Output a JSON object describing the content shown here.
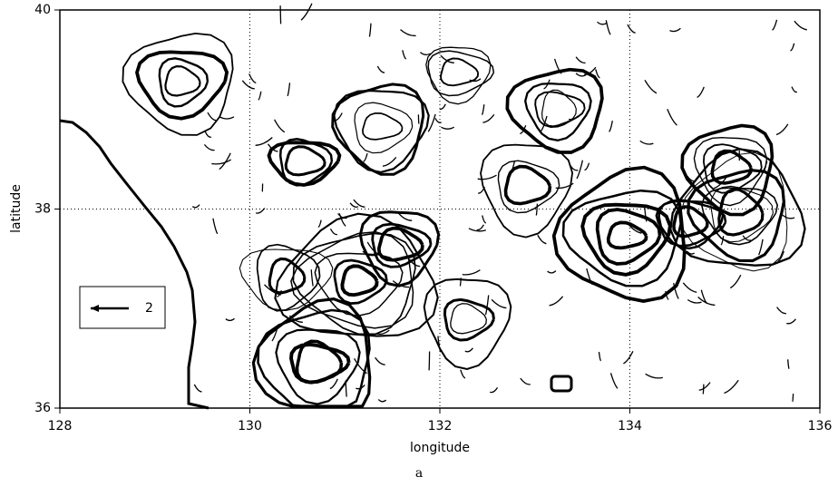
{
  "chart_data": {
    "type": "streamline",
    "caption": "a",
    "xlabel": "longitude",
    "ylabel": "latitude",
    "xlim": [
      128,
      136
    ],
    "ylim": [
      36,
      40
    ],
    "xticks": [
      128,
      130,
      132,
      134,
      136
    ],
    "yticks": [
      36,
      38,
      40
    ],
    "grid": true,
    "reference_vector": 2,
    "color": "#000000"
  }
}
